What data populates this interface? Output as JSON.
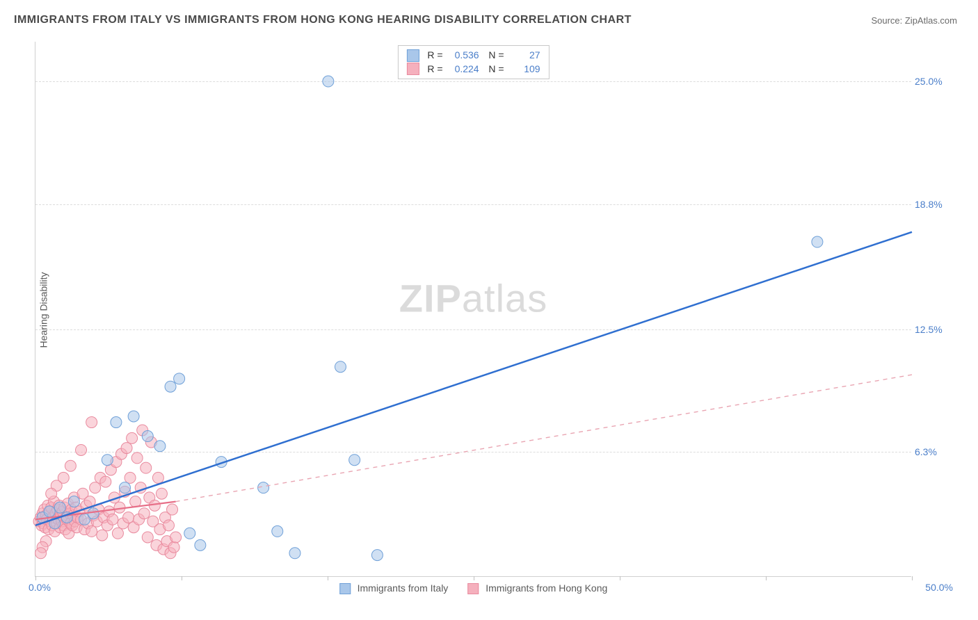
{
  "title": "IMMIGRANTS FROM ITALY VS IMMIGRANTS FROM HONG KONG HEARING DISABILITY CORRELATION CHART",
  "source_label": "Source: ",
  "source_value": "ZipAtlas.com",
  "y_axis_label": "Hearing Disability",
  "watermark_bold": "ZIP",
  "watermark_light": "atlas",
  "chart": {
    "type": "scatter",
    "x_min": 0.0,
    "x_max": 50.0,
    "y_min": 0.0,
    "y_max": 27.0,
    "x_origin_label": "0.0%",
    "x_max_label": "50.0%",
    "y_ticks": [
      {
        "value": 6.3,
        "label": "6.3%"
      },
      {
        "value": 12.5,
        "label": "12.5%"
      },
      {
        "value": 18.8,
        "label": "18.8%"
      },
      {
        "value": 25.0,
        "label": "25.0%"
      }
    ],
    "x_tick_positions": [
      0,
      8.33,
      16.67,
      25.0,
      33.33,
      41.67,
      50.0
    ],
    "background_color": "#ffffff",
    "grid_color": "#dcdcdc",
    "marker_radius": 8,
    "marker_opacity": 0.55,
    "series": [
      {
        "name": "Immigrants from Italy",
        "color_fill": "#a9c7ea",
        "color_stroke": "#6fa0d8",
        "r_value": "0.536",
        "n_value": "27",
        "trend": {
          "x1": 0.0,
          "y1": 2.6,
          "x2": 50.0,
          "y2": 17.4,
          "stroke": "#2f6fd0",
          "width": 2.5,
          "dash": "none"
        },
        "points": [
          [
            0.4,
            3.0
          ],
          [
            0.8,
            3.3
          ],
          [
            1.1,
            2.7
          ],
          [
            1.4,
            3.5
          ],
          [
            1.8,
            3.0
          ],
          [
            2.2,
            3.8
          ],
          [
            2.8,
            2.9
          ],
          [
            3.3,
            3.2
          ],
          [
            4.1,
            5.9
          ],
          [
            4.6,
            7.8
          ],
          [
            5.1,
            4.5
          ],
          [
            5.6,
            8.1
          ],
          [
            6.4,
            7.1
          ],
          [
            7.1,
            6.6
          ],
          [
            7.7,
            9.6
          ],
          [
            8.2,
            10.0
          ],
          [
            8.8,
            2.2
          ],
          [
            9.4,
            1.6
          ],
          [
            10.6,
            5.8
          ],
          [
            13.0,
            4.5
          ],
          [
            13.8,
            2.3
          ],
          [
            14.8,
            1.2
          ],
          [
            17.4,
            10.6
          ],
          [
            18.2,
            5.9
          ],
          [
            19.5,
            1.1
          ],
          [
            16.7,
            25.0
          ],
          [
            44.6,
            16.9
          ]
        ]
      },
      {
        "name": "Immigrants from Hong Kong",
        "color_fill": "#f5b0bd",
        "color_stroke": "#e98a9e",
        "r_value": "0.224",
        "n_value": "109",
        "trend_solid": {
          "x1": 0.0,
          "y1": 2.9,
          "x2": 8.0,
          "y2": 3.8,
          "stroke": "#e76f88",
          "width": 2.2
        },
        "trend_dash": {
          "x1": 8.0,
          "y1": 3.8,
          "x2": 50.0,
          "y2": 10.2,
          "stroke": "#e9a5b2",
          "width": 1.4,
          "dash": "6,6"
        },
        "points": [
          [
            0.2,
            2.8
          ],
          [
            0.3,
            3.0
          ],
          [
            0.35,
            2.6
          ],
          [
            0.4,
            3.2
          ],
          [
            0.45,
            2.7
          ],
          [
            0.5,
            3.4
          ],
          [
            0.55,
            2.5
          ],
          [
            0.6,
            3.1
          ],
          [
            0.65,
            2.9
          ],
          [
            0.7,
            3.6
          ],
          [
            0.75,
            2.4
          ],
          [
            0.8,
            3.3
          ],
          [
            0.85,
            2.8
          ],
          [
            0.9,
            3.5
          ],
          [
            0.95,
            2.6
          ],
          [
            1.0,
            3.0
          ],
          [
            1.05,
            3.8
          ],
          [
            1.1,
            2.3
          ],
          [
            1.15,
            3.2
          ],
          [
            1.2,
            2.7
          ],
          [
            1.25,
            3.4
          ],
          [
            1.3,
            2.9
          ],
          [
            1.35,
            3.6
          ],
          [
            1.4,
            2.5
          ],
          [
            1.45,
            3.1
          ],
          [
            1.5,
            2.8
          ],
          [
            1.55,
            3.3
          ],
          [
            1.6,
            2.6
          ],
          [
            1.65,
            3.5
          ],
          [
            1.7,
            2.4
          ],
          [
            1.75,
            3.0
          ],
          [
            1.8,
            2.9
          ],
          [
            1.85,
            3.7
          ],
          [
            1.9,
            2.2
          ],
          [
            1.95,
            3.2
          ],
          [
            2.0,
            2.7
          ],
          [
            2.05,
            3.4
          ],
          [
            2.1,
            2.6
          ],
          [
            2.15,
            3.1
          ],
          [
            2.2,
            4.0
          ],
          [
            2.25,
            2.8
          ],
          [
            2.3,
            3.5
          ],
          [
            2.35,
            2.5
          ],
          [
            2.4,
            3.0
          ],
          [
            2.5,
            3.3
          ],
          [
            2.6,
            2.9
          ],
          [
            2.7,
            4.2
          ],
          [
            2.8,
            2.4
          ],
          [
            2.9,
            3.6
          ],
          [
            3.0,
            2.7
          ],
          [
            3.1,
            3.8
          ],
          [
            3.2,
            2.3
          ],
          [
            3.3,
            3.1
          ],
          [
            3.4,
            4.5
          ],
          [
            3.5,
            2.8
          ],
          [
            3.6,
            3.4
          ],
          [
            3.7,
            5.0
          ],
          [
            3.8,
            2.1
          ],
          [
            3.9,
            3.0
          ],
          [
            4.0,
            4.8
          ],
          [
            4.1,
            2.6
          ],
          [
            4.2,
            3.3
          ],
          [
            4.3,
            5.4
          ],
          [
            4.4,
            2.9
          ],
          [
            4.5,
            4.0
          ],
          [
            4.6,
            5.8
          ],
          [
            4.7,
            2.2
          ],
          [
            4.8,
            3.5
          ],
          [
            4.9,
            6.2
          ],
          [
            5.0,
            2.7
          ],
          [
            5.1,
            4.3
          ],
          [
            5.2,
            6.5
          ],
          [
            5.3,
            3.0
          ],
          [
            5.4,
            5.0
          ],
          [
            5.5,
            7.0
          ],
          [
            5.6,
            2.5
          ],
          [
            5.7,
            3.8
          ],
          [
            5.8,
            6.0
          ],
          [
            5.9,
            2.9
          ],
          [
            6.0,
            4.5
          ],
          [
            6.1,
            7.4
          ],
          [
            6.2,
            3.2
          ],
          [
            6.3,
            5.5
          ],
          [
            6.4,
            2.0
          ],
          [
            6.5,
            4.0
          ],
          [
            6.6,
            6.8
          ],
          [
            6.7,
            2.8
          ],
          [
            6.8,
            3.6
          ],
          [
            6.9,
            1.6
          ],
          [
            7.0,
            5.0
          ],
          [
            7.1,
            2.4
          ],
          [
            7.2,
            4.2
          ],
          [
            7.3,
            1.4
          ],
          [
            7.4,
            3.0
          ],
          [
            7.5,
            1.8
          ],
          [
            7.6,
            2.6
          ],
          [
            7.7,
            1.2
          ],
          [
            7.8,
            3.4
          ],
          [
            7.9,
            1.5
          ],
          [
            8.0,
            2.0
          ],
          [
            3.2,
            7.8
          ],
          [
            2.6,
            6.4
          ],
          [
            2.0,
            5.6
          ],
          [
            1.6,
            5.0
          ],
          [
            1.2,
            4.6
          ],
          [
            0.9,
            4.2
          ],
          [
            0.6,
            1.8
          ],
          [
            0.4,
            1.5
          ],
          [
            0.3,
            1.2
          ]
        ]
      }
    ]
  }
}
